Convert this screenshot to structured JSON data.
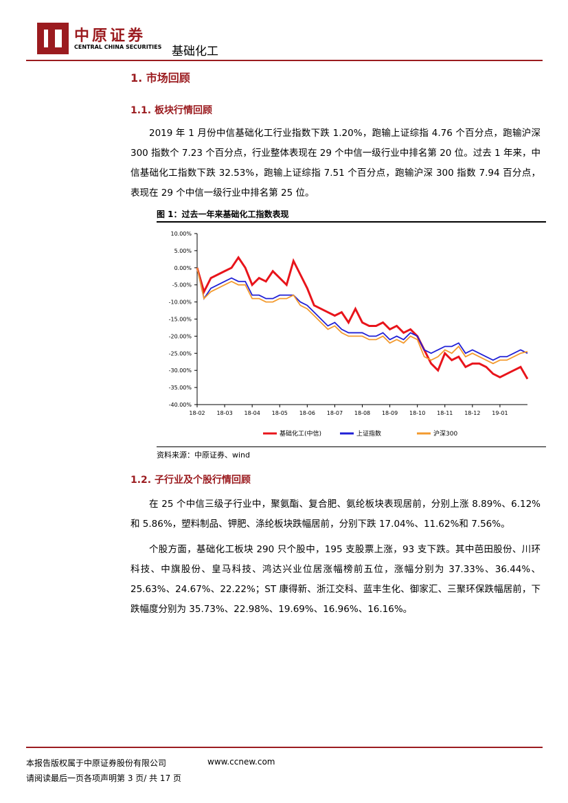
{
  "header": {
    "company": "中原证券",
    "company_en": "CENTRAL CHINA SECURITIES",
    "industry": "基础化工"
  },
  "section": {
    "title": "1. 市场回顾"
  },
  "subsection1": {
    "title": "1.1. 板块行情回顾",
    "paragraph": "2019 年 1 月份中信基础化工行业指数下跌 1.20%，跑输上证综指 4.76 个百分点，跑输沪深 300 指数个 7.23 个百分点，行业整体表现在 29 个中信一级行业中排名第 20 位。过去 1 年来，中信基础化工指数下跌 32.53%，跑输上证综指 7.51 个百分点，跑输沪深 300 指数 7.94 百分点，表现在 29 个中信一级行业中排名第 25 位。"
  },
  "figure": {
    "caption": "图 1：过去一年来基础化工指数表现",
    "source": "资料来源：中原证券、wind"
  },
  "chart_data": {
    "type": "line",
    "categories": [
      "18-02",
      null,
      null,
      null,
      "18-03",
      null,
      null,
      null,
      "18-04",
      null,
      null,
      null,
      "18-05",
      null,
      null,
      null,
      "18-06",
      null,
      null,
      null,
      "18-07",
      null,
      null,
      null,
      "18-08",
      null,
      null,
      null,
      "18-09",
      null,
      null,
      null,
      "18-10",
      null,
      null,
      null,
      "18-11",
      null,
      null,
      null,
      "18-12",
      null,
      null,
      null,
      "19-01",
      null,
      null,
      null,
      null
    ],
    "series": [
      {
        "name": "基础化工(中信)",
        "color": "#e8141b",
        "values": [
          0,
          -7,
          -3,
          -2,
          -1,
          0,
          3,
          0,
          -5,
          -3,
          -4,
          -1,
          -3,
          -5,
          2,
          -2,
          -6,
          -11,
          -12,
          -13,
          -14,
          -13,
          -16,
          -12,
          -16,
          -17,
          -17,
          -16,
          -18,
          -17,
          -19,
          -18,
          -20,
          -24,
          -28,
          -30,
          -25,
          -27,
          -26,
          -29,
          -28,
          -28,
          -29,
          -31,
          -32,
          -31,
          -30,
          -29,
          -32.5
        ]
      },
      {
        "name": "上证指数",
        "color": "#1f1fd6",
        "values": [
          0,
          -9,
          -6,
          -5,
          -4,
          -3,
          -4,
          -4,
          -8,
          -8,
          -9,
          -9,
          -8,
          -8,
          -8,
          -10,
          -11,
          -13,
          -15,
          -17,
          -16,
          -18,
          -19,
          -19,
          -19,
          -20,
          -20,
          -19,
          -21,
          -20,
          -21,
          -19,
          -20,
          -24,
          -25,
          -24,
          -23,
          -23,
          -22,
          -25,
          -24,
          -25,
          -26,
          -27,
          -26,
          -26,
          -25,
          -24,
          -25
        ]
      },
      {
        "name": "沪深300",
        "color": "#f39a2e",
        "values": [
          0,
          -9,
          -7,
          -6,
          -5,
          -4,
          -5,
          -5,
          -9,
          -9,
          -10,
          -10,
          -9,
          -9,
          -8,
          -11,
          -12,
          -14,
          -16,
          -18,
          -17,
          -19,
          -20,
          -20,
          -20,
          -21,
          -21,
          -20,
          -22,
          -21,
          -22,
          -20,
          -21,
          -26,
          -27,
          -26,
          -24,
          -25,
          -23,
          -26,
          -25,
          -26,
          -27,
          -28,
          -27,
          -27,
          -26,
          -25,
          -24.5
        ]
      }
    ],
    "ylim": [
      -40,
      10
    ],
    "yticks": [
      {
        "value": -40,
        "label": "-40.00%"
      },
      {
        "value": -35,
        "label": "-35.00%"
      },
      {
        "value": -30,
        "label": "-30.00%"
      },
      {
        "value": -25,
        "label": "-25.00%"
      },
      {
        "value": -20,
        "label": "-20.00%"
      },
      {
        "value": -15,
        "label": "-15.00%"
      },
      {
        "value": -10,
        "label": "-10.00%"
      },
      {
        "value": -5,
        "label": "-5.00%"
      },
      {
        "value": 0,
        "label": "0.00%"
      },
      {
        "value": 5,
        "label": "5.00%"
      },
      {
        "value": 10,
        "label": "10.00%"
      }
    ],
    "grid": false,
    "legend": "bottom"
  },
  "subsection2": {
    "title": "1.2. 子行业及个股行情回顾",
    "paragraphs": [
      "在 25 个中信三级子行业中，聚氨酯、复合肥、氨纶板块表现居前，分别上涨 8.89%、6.12%和 5.86%，塑料制品、钾肥、涤纶板块跌幅居前，分别下跌 17.04%、11.62%和 7.56%。",
      "个股方面，基础化工板块 290 只个股中，195 支股票上涨，93 支下跌。其中芭田股份、川环科技、中旗股份、皇马科技、鸿达兴业位居涨幅榜前五位，涨幅分别为 37.33%、36.44%、25.63%、24.67%、22.22%；ST 康得新、浙江交科、蓝丰生化、御家汇、三聚环保跌幅居前，下跌幅度分别为 35.73%、22.98%、19.69%、16.96%、16.16%。"
    ]
  },
  "footer": {
    "copyright": "本报告版权属于中原证券股份有限公司",
    "website": "www.ccnew.com",
    "page": "请阅读最后一页各项声明第 3 页/ 共 17 页"
  }
}
